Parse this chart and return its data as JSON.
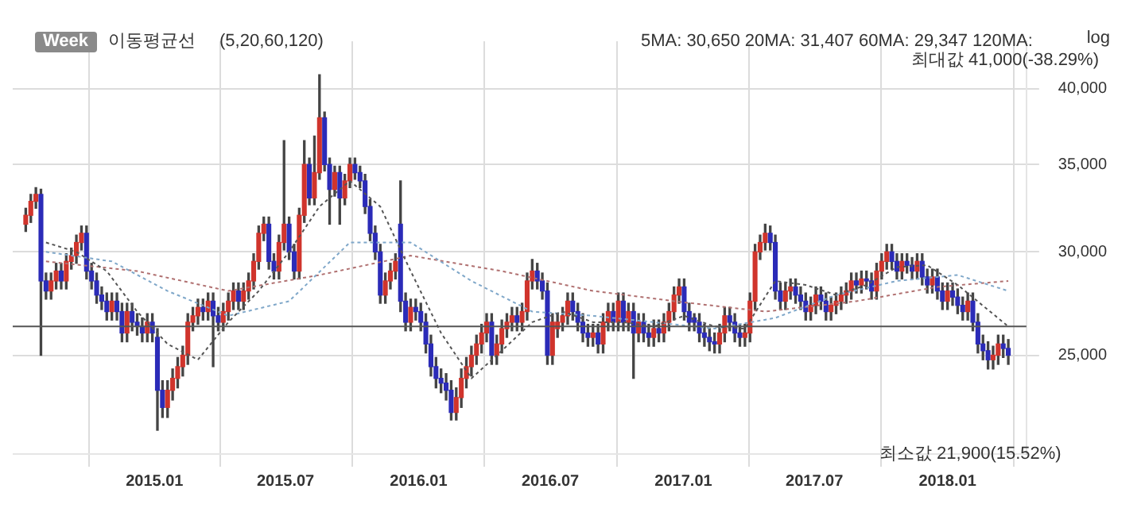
{
  "chart_data": {
    "type": "candlestick",
    "ylabel": "log",
    "annotations": [
      "Week",
      "이동평균선",
      "(5,20,60,120)",
      "5MA: 30,650 20MA: 31,407 60MA: 29,347 120MA:",
      "최대값 41,000(-38.29%)",
      "최소값 21,900(15.52%)"
    ],
    "x": [
      "2014-07-07",
      "2014-07-14",
      "2014-07-21",
      "2014-07-28",
      "2014-08-04",
      "2014-08-11",
      "2014-08-18",
      "2014-08-25",
      "2014-09-01",
      "2014-09-08",
      "2014-09-15",
      "2014-09-22",
      "2014-09-29",
      "2014-10-06",
      "2014-10-13",
      "2014-10-20",
      "2014-10-27",
      "2014-11-03",
      "2014-11-10",
      "2014-11-17",
      "2014-11-24",
      "2014-12-01",
      "2014-12-08",
      "2014-12-15",
      "2014-12-22",
      "2014-12-29",
      "2015-01-05",
      "2015-01-12",
      "2015-01-19",
      "2015-01-26",
      "2015-02-02",
      "2015-02-09",
      "2015-02-16",
      "2015-02-23",
      "2015-03-02",
      "2015-03-09",
      "2015-03-16",
      "2015-03-23",
      "2015-03-30",
      "2015-04-06",
      "2015-04-13",
      "2015-04-20",
      "2015-04-27",
      "2015-05-04",
      "2015-05-11",
      "2015-05-18",
      "2015-05-25",
      "2015-06-01",
      "2015-06-08",
      "2015-06-15",
      "2015-06-22",
      "2015-06-29",
      "2015-07-06",
      "2015-07-13",
      "2015-07-20",
      "2015-07-27",
      "2015-08-03",
      "2015-08-10",
      "2015-08-17",
      "2015-08-24",
      "2015-08-31",
      "2015-09-07",
      "2015-09-14",
      "2015-09-21",
      "2015-09-28",
      "2015-10-05",
      "2015-10-12",
      "2015-10-19",
      "2015-10-26",
      "2015-11-02",
      "2015-11-09",
      "2015-11-16",
      "2015-11-23",
      "2015-11-30",
      "2015-12-07",
      "2015-12-14",
      "2015-12-21",
      "2015-12-28",
      "2016-01-04",
      "2016-01-11",
      "2016-01-18",
      "2016-01-25",
      "2016-02-01",
      "2016-02-08",
      "2016-02-15",
      "2016-02-22",
      "2016-02-29",
      "2016-03-07",
      "2016-03-14",
      "2016-03-21",
      "2016-03-28",
      "2016-04-04",
      "2016-04-11",
      "2016-04-18",
      "2016-04-25",
      "2016-05-02",
      "2016-05-09",
      "2016-05-16",
      "2016-05-23",
      "2016-05-30",
      "2016-06-06",
      "2016-06-13",
      "2016-06-20",
      "2016-06-27",
      "2016-07-04",
      "2016-07-11",
      "2016-07-18",
      "2016-07-25",
      "2016-08-01",
      "2016-08-08",
      "2016-08-15",
      "2016-08-22",
      "2016-08-29",
      "2016-09-05",
      "2016-09-12",
      "2016-09-19",
      "2016-09-26",
      "2016-10-03",
      "2016-10-10",
      "2016-10-17",
      "2016-10-24",
      "2016-10-31",
      "2016-11-07",
      "2016-11-14",
      "2016-11-21",
      "2016-11-28",
      "2016-12-05",
      "2016-12-12",
      "2016-12-19",
      "2016-12-26",
      "2017-01-02",
      "2017-01-09",
      "2017-01-16",
      "2017-01-23",
      "2017-01-30",
      "2017-02-06",
      "2017-02-13",
      "2017-02-20",
      "2017-02-27",
      "2017-03-06",
      "2017-03-13",
      "2017-03-20",
      "2017-03-27",
      "2017-04-03",
      "2017-04-10",
      "2017-04-17",
      "2017-04-24",
      "2017-05-01",
      "2017-05-08",
      "2017-05-15",
      "2017-05-22",
      "2017-05-29",
      "2017-06-05",
      "2017-06-12",
      "2017-06-19",
      "2017-06-26",
      "2017-07-03",
      "2017-07-10",
      "2017-07-17",
      "2017-07-24",
      "2017-07-31",
      "2017-08-07",
      "2017-08-14",
      "2017-08-21",
      "2017-08-28",
      "2017-09-04",
      "2017-09-11",
      "2017-09-18",
      "2017-09-25",
      "2017-10-02",
      "2017-10-09",
      "2017-10-16",
      "2017-10-23",
      "2017-10-30",
      "2017-11-06",
      "2017-11-13",
      "2017-11-20",
      "2017-11-27",
      "2017-12-04",
      "2017-12-11",
      "2017-12-18",
      "2017-12-25",
      "2018-01-01",
      "2018-01-08",
      "2018-01-15",
      "2018-01-22",
      "2018-01-29",
      "2018-02-05",
      "2018-02-12",
      "2018-02-19",
      "2018-02-26",
      "2018-03-05",
      "2018-03-12",
      "2018-03-19",
      "2018-03-26"
    ],
    "ohlc": [
      [
        31500,
        32400,
        31100,
        32000
      ],
      [
        32000,
        33200,
        31600,
        32800
      ],
      [
        32800,
        33600,
        32400,
        33200
      ],
      [
        33200,
        33500,
        25000,
        28500
      ],
      [
        28500,
        28900,
        27600,
        28000
      ],
      [
        28000,
        28900,
        27600,
        28500
      ],
      [
        28500,
        29400,
        28100,
        29000
      ],
      [
        29000,
        29400,
        28100,
        28500
      ],
      [
        28500,
        29900,
        28100,
        29500
      ],
      [
        29500,
        30200,
        29100,
        29800
      ],
      [
        29800,
        30900,
        29400,
        30500
      ],
      [
        30500,
        31400,
        30100,
        31000
      ],
      [
        31000,
        31400,
        28600,
        29000
      ],
      [
        29000,
        29400,
        28100,
        28500
      ],
      [
        28500,
        28900,
        27400,
        27800
      ],
      [
        27800,
        28200,
        27100,
        27500
      ],
      [
        27500,
        27900,
        26600,
        27000
      ],
      [
        27000,
        27900,
        26600,
        27500
      ],
      [
        27500,
        27900,
        26600,
        27000
      ],
      [
        27000,
        27400,
        25600,
        26000
      ],
      [
        26000,
        27400,
        25600,
        27000
      ],
      [
        27000,
        27400,
        26100,
        26500
      ],
      [
        26500,
        26900,
        25900,
        26300
      ],
      [
        26300,
        26700,
        25600,
        26000
      ],
      [
        26000,
        26900,
        25600,
        26500
      ],
      [
        26500,
        26900,
        25600,
        26000
      ],
      [
        25800,
        26200,
        21900,
        23500
      ],
      [
        23500,
        23900,
        22400,
        22800
      ],
      [
        22800,
        23900,
        22400,
        23500
      ],
      [
        23500,
        24400,
        23100,
        24000
      ],
      [
        24000,
        24900,
        23600,
        24500
      ],
      [
        24500,
        25400,
        24100,
        25000
      ],
      [
        25000,
        26900,
        24600,
        26500
      ],
      [
        26500,
        27200,
        26100,
        26800
      ],
      [
        26800,
        27600,
        26400,
        27200
      ],
      [
        27200,
        27600,
        26600,
        27000
      ],
      [
        27000,
        27900,
        26600,
        27500
      ],
      [
        27500,
        27900,
        24500,
        26800
      ],
      [
        26800,
        27200,
        26100,
        26500
      ],
      [
        26500,
        27400,
        26100,
        27000
      ],
      [
        27000,
        27900,
        26600,
        27500
      ],
      [
        27500,
        28400,
        27100,
        28000
      ],
      [
        28000,
        28400,
        27100,
        27500
      ],
      [
        27500,
        28400,
        27100,
        28000
      ],
      [
        28000,
        28900,
        27600,
        28500
      ],
      [
        28500,
        29900,
        28100,
        29500
      ],
      [
        29500,
        31400,
        29100,
        31000
      ],
      [
        31000,
        31900,
        30600,
        31500
      ],
      [
        31500,
        31900,
        29100,
        29500
      ],
      [
        29500,
        29900,
        28600,
        29000
      ],
      [
        29000,
        30900,
        28600,
        30500
      ],
      [
        30500,
        36500,
        30100,
        31500
      ],
      [
        31500,
        31900,
        29600,
        30000
      ],
      [
        30000,
        30400,
        28600,
        29000
      ],
      [
        29000,
        32400,
        28600,
        32000
      ],
      [
        32000,
        36500,
        31600,
        35000
      ],
      [
        35000,
        35400,
        32600,
        33000
      ],
      [
        33000,
        36800,
        32600,
        34500
      ],
      [
        34500,
        41000,
        34100,
        38000
      ],
      [
        38000,
        38400,
        34600,
        35000
      ],
      [
        35000,
        35400,
        31500,
        33500
      ],
      [
        33500,
        34900,
        33100,
        34500
      ],
      [
        34500,
        34900,
        31500,
        33000
      ],
      [
        33000,
        34400,
        32600,
        34000
      ],
      [
        34000,
        35400,
        33600,
        35000
      ],
      [
        35000,
        35400,
        34100,
        34500
      ],
      [
        34500,
        34900,
        33600,
        34000
      ],
      [
        34000,
        34400,
        32100,
        32500
      ],
      [
        32500,
        32900,
        30600,
        31000
      ],
      [
        31000,
        31400,
        29600,
        30000
      ],
      [
        30000,
        30400,
        27400,
        27800
      ],
      [
        27800,
        28900,
        27400,
        28500
      ],
      [
        28500,
        29400,
        28100,
        29000
      ],
      [
        29000,
        29900,
        28600,
        29500
      ],
      [
        31500,
        34000,
        27000,
        27500
      ],
      [
        27500,
        27900,
        26100,
        26500
      ],
      [
        26500,
        27600,
        26100,
        27200
      ],
      [
        27200,
        27600,
        26600,
        27000
      ],
      [
        27000,
        27400,
        26100,
        26500
      ],
      [
        26500,
        26900,
        25100,
        25500
      ],
      [
        25500,
        25900,
        24100,
        24500
      ],
      [
        24500,
        24900,
        23600,
        24000
      ],
      [
        24000,
        24400,
        23400,
        23800
      ],
      [
        23800,
        24200,
        23100,
        23500
      ],
      [
        23500,
        23900,
        22300,
        22600
      ],
      [
        22600,
        23600,
        22300,
        23200
      ],
      [
        23200,
        24400,
        22800,
        24000
      ],
      [
        24000,
        24900,
        23600,
        24500
      ],
      [
        24500,
        25400,
        24100,
        25000
      ],
      [
        25000,
        25900,
        24600,
        25500
      ],
      [
        25500,
        26400,
        25100,
        26000
      ],
      [
        26000,
        26900,
        25600,
        26500
      ],
      [
        26500,
        26900,
        24600,
        25000
      ],
      [
        25000,
        25900,
        24600,
        25500
      ],
      [
        25500,
        26600,
        25100,
        26200
      ],
      [
        26200,
        26900,
        25800,
        26500
      ],
      [
        26500,
        27200,
        26100,
        26800
      ],
      [
        26800,
        27200,
        26100,
        26500
      ],
      [
        26500,
        27400,
        26100,
        27000
      ],
      [
        27000,
        28900,
        26600,
        28500
      ],
      [
        28500,
        29600,
        28100,
        29000
      ],
      [
        29000,
        29400,
        28100,
        28500
      ],
      [
        28500,
        28900,
        27600,
        28000
      ],
      [
        28000,
        28400,
        24600,
        25000
      ],
      [
        25000,
        26900,
        24600,
        26500
      ],
      [
        26200,
        26900,
        25800,
        26500
      ],
      [
        26500,
        27200,
        26100,
        26800
      ],
      [
        26800,
        27900,
        26400,
        27500
      ],
      [
        27500,
        27900,
        26600,
        27000
      ],
      [
        27000,
        27400,
        26100,
        26500
      ],
      [
        26500,
        26900,
        25600,
        26000
      ],
      [
        26000,
        26400,
        25400,
        25800
      ],
      [
        25800,
        26400,
        25400,
        26000
      ],
      [
        26000,
        26400,
        25100,
        25500
      ],
      [
        25500,
        26900,
        25100,
        26500
      ],
      [
        26500,
        27400,
        26100,
        27000
      ],
      [
        27000,
        27400,
        26100,
        26500
      ],
      [
        26500,
        27900,
        26100,
        27500
      ],
      [
        27500,
        27900,
        26100,
        26500
      ],
      [
        26500,
        27400,
        26100,
        27000
      ],
      [
        27000,
        27400,
        24000,
        26000
      ],
      [
        26000,
        26900,
        25600,
        26500
      ],
      [
        26500,
        26900,
        25600,
        26000
      ],
      [
        26000,
        26400,
        25400,
        25800
      ],
      [
        25800,
        26600,
        25400,
        26200
      ],
      [
        26200,
        26600,
        25600,
        26000
      ],
      [
        26000,
        26900,
        25600,
        26500
      ],
      [
        26500,
        27400,
        26100,
        27000
      ],
      [
        27000,
        28200,
        26600,
        27800
      ],
      [
        27800,
        28600,
        27400,
        28200
      ],
      [
        28200,
        28600,
        26600,
        27000
      ],
      [
        27000,
        27400,
        26100,
        26500
      ],
      [
        26700,
        26900,
        26100,
        26500
      ],
      [
        26500,
        26900,
        25600,
        26000
      ],
      [
        26000,
        26400,
        25400,
        25800
      ],
      [
        25800,
        26200,
        25200,
        25600
      ],
      [
        25600,
        26000,
        25100,
        25500
      ],
      [
        25500,
        26400,
        25100,
        26000
      ],
      [
        26000,
        27200,
        25600,
        26800
      ],
      [
        26800,
        27200,
        26100,
        26500
      ],
      [
        26500,
        26900,
        25600,
        26000
      ],
      [
        26000,
        26400,
        25400,
        25800
      ],
      [
        25800,
        26400,
        25400,
        26000
      ],
      [
        26000,
        27900,
        25600,
        27500
      ],
      [
        27500,
        30400,
        27100,
        30000
      ],
      [
        30000,
        30900,
        29600,
        30500
      ],
      [
        30500,
        31500,
        30100,
        31000
      ],
      [
        31000,
        31400,
        30100,
        30500
      ],
      [
        30500,
        30900,
        27600,
        28000
      ],
      [
        28000,
        28400,
        27100,
        27500
      ],
      [
        27500,
        28400,
        27100,
        28000
      ],
      [
        28000,
        28600,
        27600,
        28200
      ],
      [
        28200,
        28600,
        27400,
        27800
      ],
      [
        27800,
        28200,
        27100,
        27500
      ],
      [
        27500,
        27900,
        26600,
        27000
      ],
      [
        27000,
        27700,
        26600,
        27300
      ],
      [
        27300,
        28200,
        26900,
        27800
      ],
      [
        27800,
        28200,
        27100,
        27500
      ],
      [
        27500,
        27900,
        26600,
        27000
      ],
      [
        27000,
        27700,
        26600,
        27300
      ],
      [
        27300,
        27900,
        26900,
        27500
      ],
      [
        27500,
        28200,
        27100,
        27800
      ],
      [
        27800,
        28400,
        27400,
        28000
      ],
      [
        28000,
        28900,
        27600,
        28500
      ],
      [
        28500,
        28900,
        27900,
        28300
      ],
      [
        28300,
        29000,
        27900,
        28600
      ],
      [
        28600,
        29000,
        28100,
        28500
      ],
      [
        28500,
        28900,
        27600,
        28000
      ],
      [
        28000,
        29400,
        27600,
        29000
      ],
      [
        29000,
        29900,
        28600,
        29500
      ],
      [
        29500,
        30400,
        29100,
        30000
      ],
      [
        30000,
        30400,
        29100,
        29500
      ],
      [
        29500,
        29900,
        28600,
        29000
      ],
      [
        29000,
        29900,
        28600,
        29500
      ],
      [
        29500,
        29900,
        28900,
        29300
      ],
      [
        29300,
        29700,
        28600,
        29000
      ],
      [
        29000,
        29900,
        28600,
        29500
      ],
      [
        29500,
        29900,
        28300,
        28700
      ],
      [
        28700,
        29100,
        27900,
        28300
      ],
      [
        28300,
        29100,
        27900,
        28700
      ],
      [
        28700,
        29100,
        27600,
        28000
      ],
      [
        28000,
        28400,
        27100,
        27500
      ],
      [
        27500,
        28400,
        27100,
        28000
      ],
      [
        28000,
        28400,
        27300,
        27700
      ],
      [
        27700,
        28100,
        26900,
        27300
      ],
      [
        27300,
        27700,
        26600,
        27000
      ],
      [
        27000,
        27900,
        26600,
        27500
      ],
      [
        27500,
        27900,
        26100,
        26500
      ],
      [
        26500,
        26900,
        25100,
        25500
      ],
      [
        25500,
        25900,
        24800,
        25200
      ],
      [
        25200,
        25600,
        24400,
        24800
      ],
      [
        24800,
        25400,
        24400,
        25000
      ],
      [
        25000,
        25900,
        24600,
        25500
      ],
      [
        25500,
        25900,
        24900,
        25300
      ],
      [
        25300,
        25700,
        24600,
        25000
      ]
    ],
    "series": [
      {
        "type": "line",
        "color": "#555555",
        "line_style": "dotted",
        "x": [
          "2014-08-04",
          "2014-09-15",
          "2014-10-27",
          "2014-12-08",
          "2015-01-19",
          "2015-03-02",
          "2015-04-13",
          "2015-05-25",
          "2015-07-06",
          "2015-08-17",
          "2015-09-28",
          "2015-11-09",
          "2015-12-21",
          "2016-02-01",
          "2016-03-14",
          "2016-04-25",
          "2016-06-06",
          "2016-07-18",
          "2016-08-29",
          "2016-10-10",
          "2016-11-21",
          "2017-01-02",
          "2017-02-13",
          "2017-03-27",
          "2017-05-08",
          "2017-06-19",
          "2017-07-31",
          "2017-09-11",
          "2017-10-23",
          "2017-12-04",
          "2018-01-15",
          "2018-03-26"
        ],
        "values": [
          30500,
          30000,
          29000,
          27000,
          25500,
          24800,
          26500,
          28000,
          30000,
          32500,
          34000,
          32500,
          29000,
          26000,
          24000,
          25200,
          26500,
          27000,
          26500,
          26500,
          26300,
          26800,
          26300,
          26200,
          28500,
          28300,
          27800,
          28300,
          29200,
          29300,
          28300,
          26300
        ]
      },
      {
        "type": "line",
        "color": "#7fa7c9",
        "line_style": "dotted",
        "x": [
          "2014-08-04",
          "2014-11-03",
          "2015-01-19",
          "2015-04-13",
          "2015-07-06",
          "2015-09-28",
          "2015-12-21",
          "2016-03-14",
          "2016-06-06",
          "2016-08-29",
          "2016-11-21",
          "2017-02-13",
          "2017-05-08",
          "2017-07-31",
          "2017-10-23",
          "2018-01-15",
          "2018-03-26"
        ],
        "values": [
          30000,
          29500,
          28000,
          26800,
          27500,
          30500,
          30500,
          28500,
          27000,
          26800,
          26500,
          26200,
          26700,
          27800,
          28500,
          28800,
          28000
        ]
      },
      {
        "type": "line",
        "color": "#b07070",
        "line_style": "dotted",
        "x": [
          "2014-08-04",
          "2014-12-08",
          "2015-04-13",
          "2015-08-17",
          "2015-12-21",
          "2016-04-25",
          "2016-08-29",
          "2016-12-19",
          "2017-04-24",
          "2017-08-28",
          "2017-12-18",
          "2018-03-26"
        ],
        "values": [
          29500,
          29000,
          28000,
          28800,
          29800,
          29000,
          28000,
          27500,
          27000,
          27500,
          28200,
          28500
        ]
      }
    ],
    "log": true,
    "grid": true,
    "legend": false,
    "xlim": [
      "2014-06-19",
      "2018-04-20"
    ],
    "xticks": [
      {
        "value": "2015-01-01",
        "label": "2015.01"
      },
      {
        "value": "2015-07-01",
        "label": "2015.07"
      },
      {
        "value": "2016-01-01",
        "label": "2016.01"
      },
      {
        "value": "2016-07-01",
        "label": "2016.07"
      },
      {
        "value": "2017-01-01",
        "label": "2017.01"
      },
      {
        "value": "2017-07-01",
        "label": "2017.07"
      },
      {
        "value": "2018-01-01",
        "label": "2018.01"
      }
    ],
    "ylim": [
      21000,
      43500
    ],
    "yticks": [
      {
        "value": 25000,
        "label": "25,000"
      },
      {
        "value": 30000,
        "label": "30,000"
      },
      {
        "value": 35000,
        "label": "35,000"
      },
      {
        "value": 40000,
        "label": "40,000"
      }
    ],
    "ref_lines": [
      {
        "axis": "y",
        "value": 26300,
        "color": "#555555"
      }
    ]
  }
}
